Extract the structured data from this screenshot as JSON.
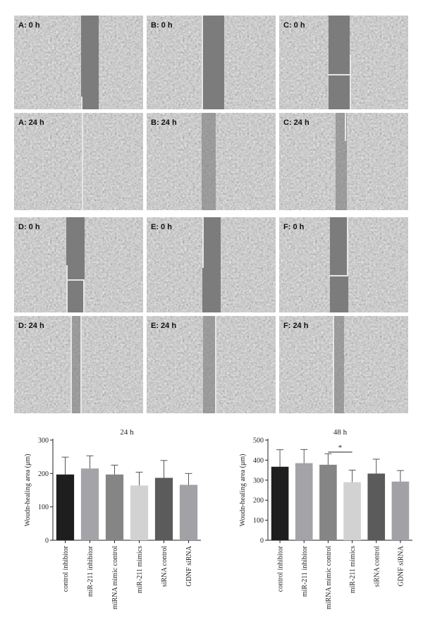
{
  "panels": [
    {
      "label": "A: 0 h"
    },
    {
      "label": "B: 0 h"
    },
    {
      "label": "C: 0 h"
    },
    {
      "label": "A: 24 h"
    },
    {
      "label": "B: 24 h"
    },
    {
      "label": "C: 24 h"
    },
    {
      "label": "D: 0 h"
    },
    {
      "label": "E: 0 h"
    },
    {
      "label": "F: 0 h"
    },
    {
      "label": "D: 24 h"
    },
    {
      "label": "E: 24 h"
    },
    {
      "label": "F: 24 h"
    }
  ],
  "chart_data": [
    {
      "type": "bar",
      "title": "24 h",
      "ylabel": "Woudn-healing area (μm)",
      "ylim": [
        0,
        300
      ],
      "yticks": [
        0,
        100,
        200,
        300
      ],
      "categories": [
        "control inhibitor",
        "miR-211 inhibitor",
        "miRNA mimic control",
        "miR-211 mimics",
        "siRNA control",
        "GDNF siRNA"
      ],
      "values": [
        197,
        215,
        197,
        164,
        187,
        166
      ],
      "errors": [
        52,
        38,
        28,
        40,
        52,
        34
      ],
      "colors": [
        "#1e1e1e",
        "#a3a3a8",
        "#858585",
        "#d2d2d2",
        "#5b5b5b",
        "#a1a1a6"
      ],
      "significance": []
    },
    {
      "type": "bar",
      "title": "48 h",
      "ylabel": "Woudn-healing area (μm)",
      "ylim": [
        0,
        500
      ],
      "yticks": [
        0,
        100,
        200,
        300,
        400,
        500
      ],
      "categories": [
        "control inhibitor",
        "miR-211 inhibitor",
        "miRNA mimic control",
        "miR-211 mimics",
        "siRNA control",
        "GDNF siRNA"
      ],
      "values": [
        367,
        385,
        377,
        290,
        333,
        293
      ],
      "errors": [
        85,
        68,
        55,
        60,
        72,
        55
      ],
      "colors": [
        "#1e1e1e",
        "#a3a3a8",
        "#858585",
        "#d2d2d2",
        "#5b5b5b",
        "#a1a1a6"
      ],
      "significance": [
        {
          "from": 2,
          "to": 3,
          "label": "*",
          "y": 440
        }
      ]
    }
  ]
}
